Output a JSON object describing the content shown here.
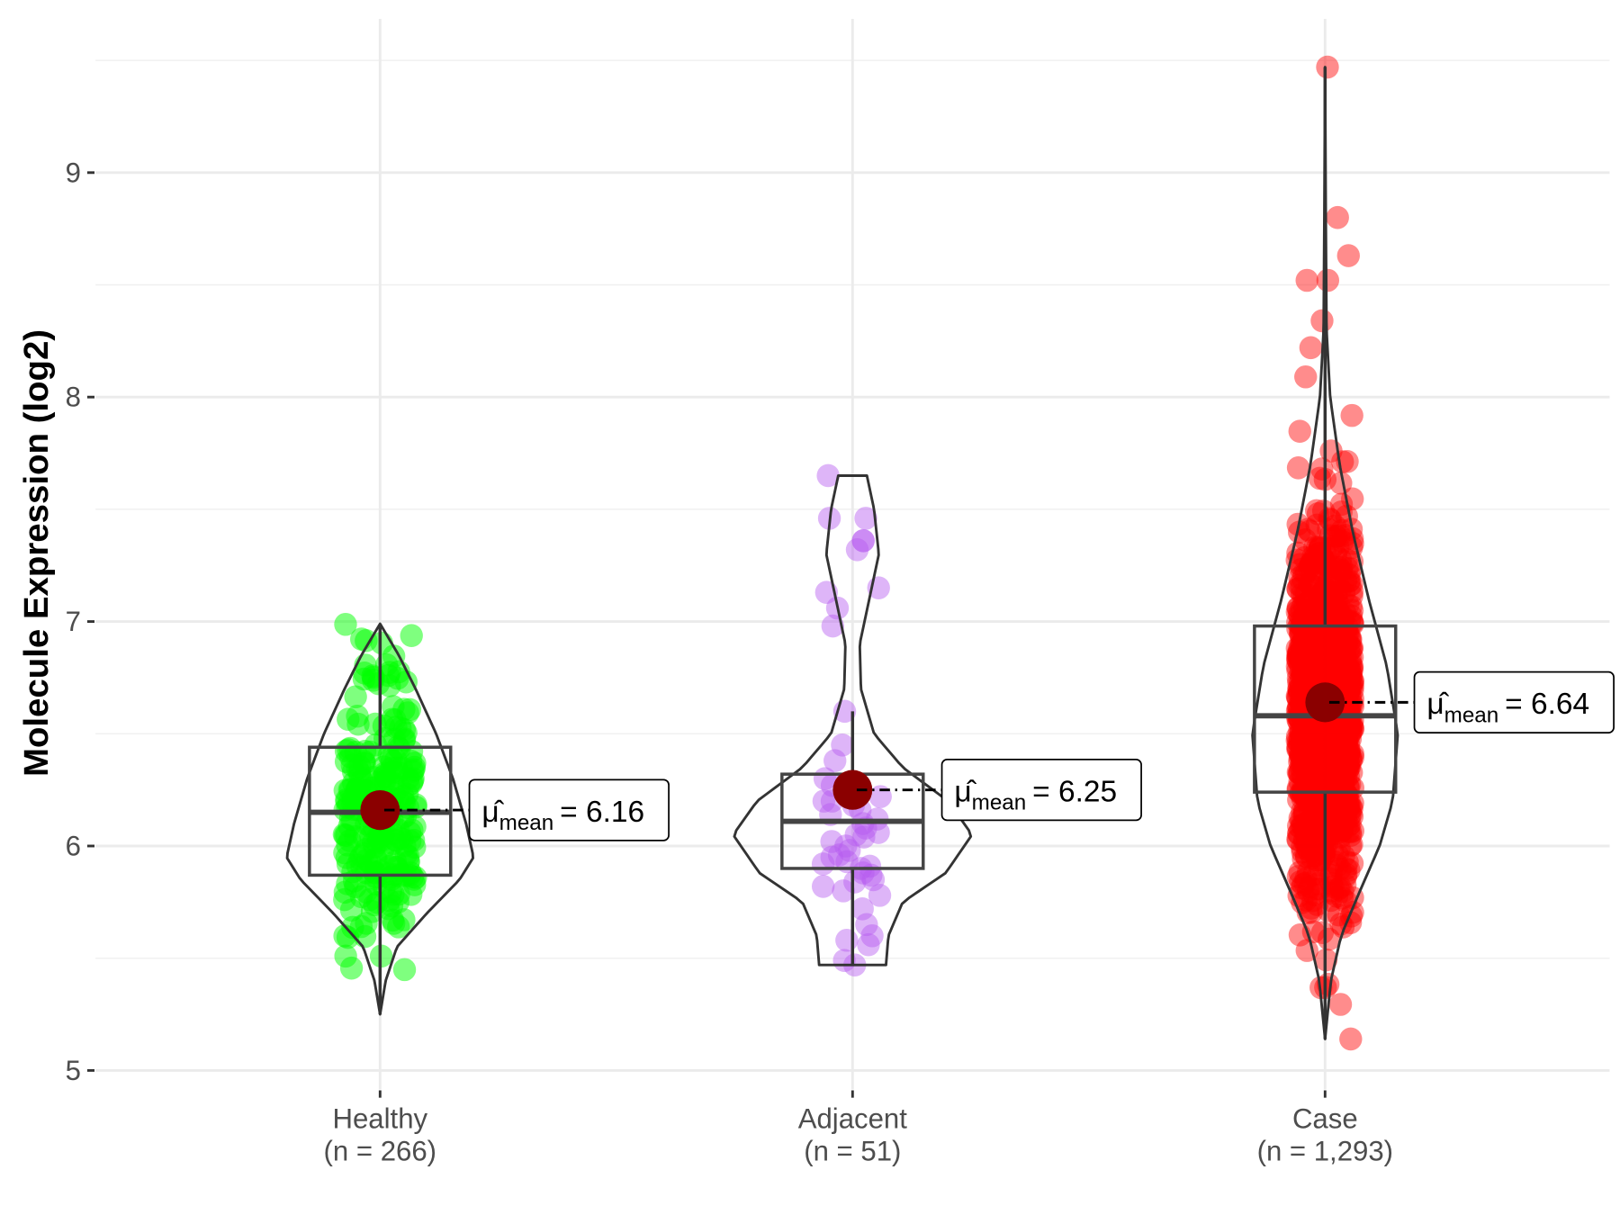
{
  "chart_data": {
    "type": "violin-box-jitter",
    "title": "",
    "xlabel": "",
    "ylabel": "Molecule Expression (log2)",
    "ylim": [
      4.9,
      9.6
    ],
    "yticks": [
      5,
      6,
      7,
      8,
      9
    ],
    "ytick_labels": [
      "5",
      "6",
      "7",
      "8",
      "9"
    ],
    "grid": true,
    "mean_symbol": "μ̂",
    "mean_subscript": "mean",
    "groups": [
      {
        "name": "Healthy",
        "n_label": "(n = 266)",
        "n": 266,
        "color": "#00ff00",
        "box": {
          "whisker_low": 5.25,
          "q1": 5.87,
          "median": 6.15,
          "q3": 6.44,
          "whisker_high": 6.99
        },
        "mean": 6.16,
        "mean_label": "= 6.16",
        "sd": 0.34,
        "violin": [
          [
            5.25,
            0
          ],
          [
            5.4,
            0.06
          ],
          [
            5.55,
            0.18
          ],
          [
            5.7,
            0.5
          ],
          [
            5.85,
            0.85
          ],
          [
            5.95,
            1.0
          ],
          [
            6.1,
            0.92
          ],
          [
            6.3,
            0.78
          ],
          [
            6.5,
            0.6
          ],
          [
            6.7,
            0.38
          ],
          [
            6.85,
            0.2
          ],
          [
            6.99,
            0
          ]
        ]
      },
      {
        "name": "Adjacent",
        "n_label": "(n = 51)",
        "n": 51,
        "color": "#b65cf0",
        "box": {
          "whisker_low": 5.47,
          "q1": 5.9,
          "median": 6.11,
          "q3": 6.32,
          "whisker_high": 6.6
        },
        "mean": 6.25,
        "mean_label": "= 6.25",
        "sd": 0.5,
        "violin": [
          [
            5.47,
            0.28
          ],
          [
            5.6,
            0.3
          ],
          [
            5.75,
            0.42
          ],
          [
            5.88,
            0.78
          ],
          [
            6.05,
            1.0
          ],
          [
            6.2,
            0.8
          ],
          [
            6.35,
            0.42
          ],
          [
            6.5,
            0.18
          ],
          [
            6.7,
            0.07
          ],
          [
            6.9,
            0.06
          ],
          [
            7.1,
            0.14
          ],
          [
            7.3,
            0.22
          ],
          [
            7.5,
            0.18
          ],
          [
            7.65,
            0.12
          ]
        ],
        "points": [
          7.65,
          7.46,
          7.46,
          7.36,
          7.36,
          7.32,
          7.15,
          7.13,
          7.06,
          6.98,
          6.6,
          6.45,
          6.38,
          6.3,
          6.27,
          6.25,
          6.22,
          6.2,
          6.18,
          6.16,
          6.14,
          6.12,
          6.1,
          6.08,
          6.06,
          6.04,
          6.02,
          6.0,
          5.98,
          5.96,
          5.95,
          5.93,
          5.91,
          5.9,
          5.88,
          5.87,
          5.85,
          5.84,
          5.82,
          5.8,
          5.78,
          5.72,
          5.65,
          5.6,
          5.58,
          5.56,
          5.49,
          5.47,
          6.2,
          6.05,
          5.92
        ]
      },
      {
        "name": "Case",
        "n_label": "(n = 1,293)",
        "n": 1293,
        "color": "#ff0000",
        "box": {
          "whisker_low": 5.14,
          "q1": 6.24,
          "median": 6.58,
          "q3": 6.98,
          "whisker_high": 9.47
        },
        "mean": 6.64,
        "mean_label": "= 6.64",
        "sd": 0.52,
        "violin": [
          [
            5.14,
            0
          ],
          [
            5.4,
            0.08
          ],
          [
            5.6,
            0.22
          ],
          [
            5.8,
            0.48
          ],
          [
            6.0,
            0.75
          ],
          [
            6.2,
            0.93
          ],
          [
            6.5,
            1.0
          ],
          [
            6.8,
            0.85
          ],
          [
            7.1,
            0.6
          ],
          [
            7.4,
            0.38
          ],
          [
            7.7,
            0.2
          ],
          [
            8.0,
            0.07
          ],
          [
            8.3,
            0.02
          ],
          [
            8.8,
            0.01
          ],
          [
            9.47,
            0
          ]
        ],
        "outliers": [
          9.47,
          8.8,
          8.63,
          8.52,
          8.52,
          8.34,
          8.22,
          8.09,
          5.37,
          5.14
        ]
      }
    ]
  }
}
